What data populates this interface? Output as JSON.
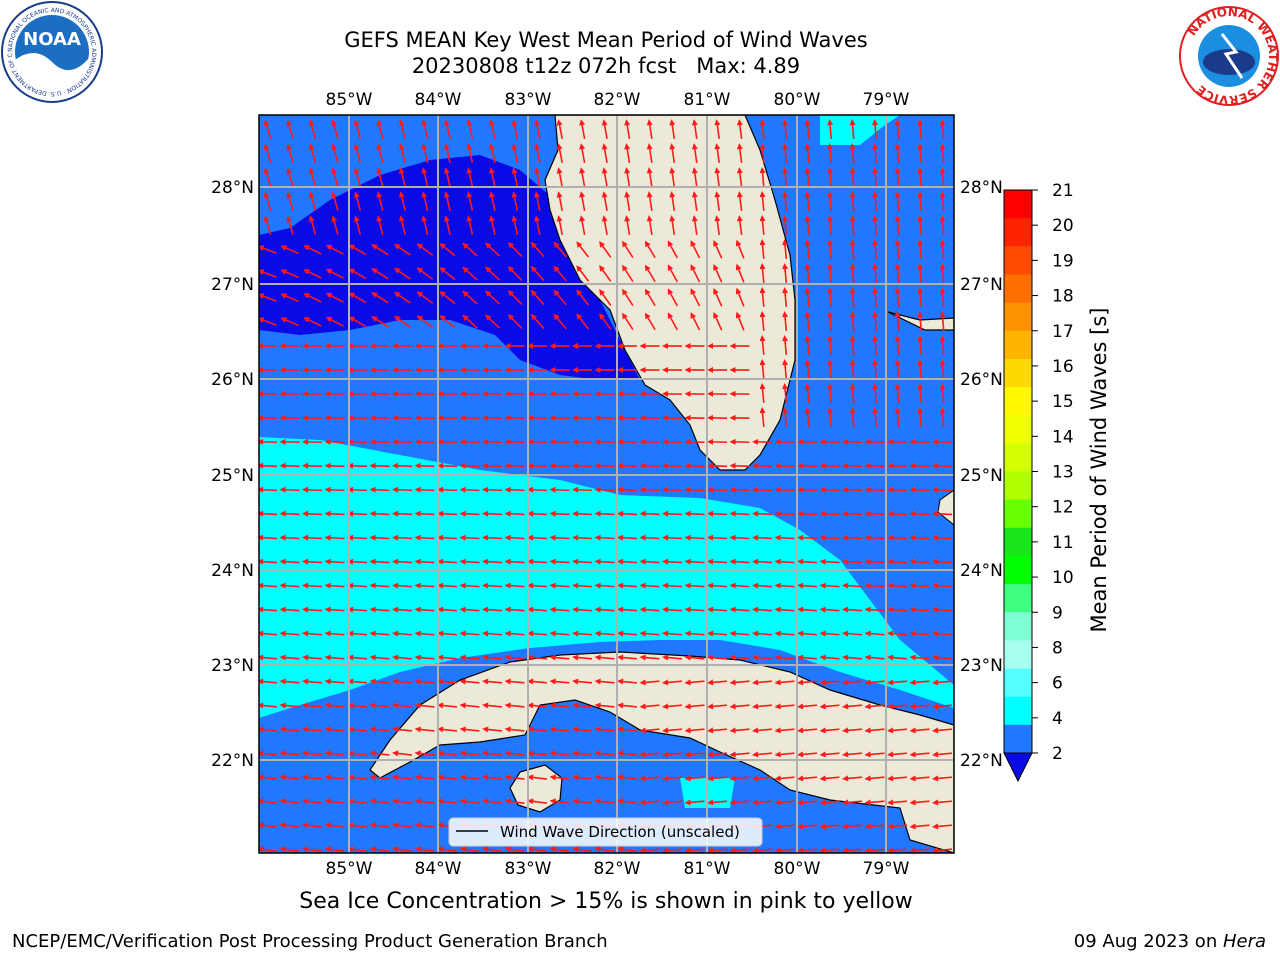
{
  "title": {
    "line1": "GEFS MEAN Key West Mean Period of Wind Waves",
    "line2": "20230808 t12z 072h fcst   Max: 4.89"
  },
  "map": {
    "lon_labels": [
      "85°W",
      "84°W",
      "83°W",
      "82°W",
      "81°W",
      "80°W",
      "79°W"
    ],
    "lat_labels": [
      "28°N",
      "27°N",
      "26°N",
      "25°N",
      "24°N",
      "23°N",
      "22°N"
    ],
    "legend_label": "Wind Wave Direction (unscaled)",
    "colors": {
      "land": "#ede9d8",
      "ocean_dark": "#0a0ae6",
      "ocean_mid": "#1f78ff",
      "ocean_light": "#00ffff",
      "ocean_pale": "#3fdfff",
      "arrow": "#ff1a1a",
      "grid": "#b0b0b0"
    }
  },
  "colorbar": {
    "title": "Mean Period of Wind Waves [s]",
    "ticks": [
      "21",
      "20",
      "19",
      "18",
      "17",
      "16",
      "15",
      "14",
      "13",
      "12",
      "11",
      "10",
      "9",
      "8",
      "6",
      "4",
      "2"
    ],
    "colors": [
      "#ff0000",
      "#ff2400",
      "#ff4a00",
      "#ff6e00",
      "#ff9200",
      "#ffb400",
      "#ffd800",
      "#fff800",
      "#f0ff00",
      "#d4ff00",
      "#b0ff00",
      "#6aff00",
      "#1ae61a",
      "#00ff00",
      "#3fff80",
      "#7fffd4",
      "#a8fff0",
      "#55ffff",
      "#00ffff",
      "#1f78ff",
      "#0a0ae6"
    ]
  },
  "note": "Sea Ice Concentration > 15% is shown in pink to yellow",
  "footer": {
    "left": "NCEP/EMC/Verification Post Processing Product Generation Branch",
    "right_prefix": "09 Aug 2023 on ",
    "right_host": "Hera"
  },
  "logos": {
    "noaa": "NOAA",
    "noaa_ring": "NATIONAL OCEANIC AND ATMOSPHERIC ADMINISTRATION · U.S. DEPARTMENT OF COMMERCE",
    "nws_ring": "NATIONAL WEATHER SERVICE"
  }
}
